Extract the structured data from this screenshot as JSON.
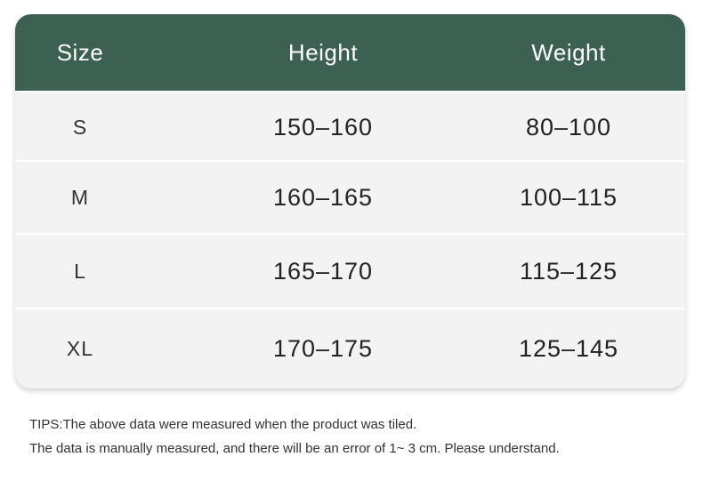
{
  "table": {
    "headers": [
      "Size",
      "Height",
      "Weight"
    ],
    "rows": [
      [
        "S",
        "150–160",
        "80–100"
      ],
      [
        "M",
        "160–165",
        "100–115"
      ],
      [
        "L",
        "165–170",
        "115–125"
      ],
      [
        "XL",
        "170–175",
        "125–145"
      ]
    ]
  },
  "tips": [
    "TIPS:The above data were measured when the product was tiled.",
    "The data is manually measured, and there will be an error of 1~ 3 cm. Please understand."
  ],
  "colors": {
    "header_bg": "#3c6152",
    "row_bg": "#f3f3f3"
  }
}
